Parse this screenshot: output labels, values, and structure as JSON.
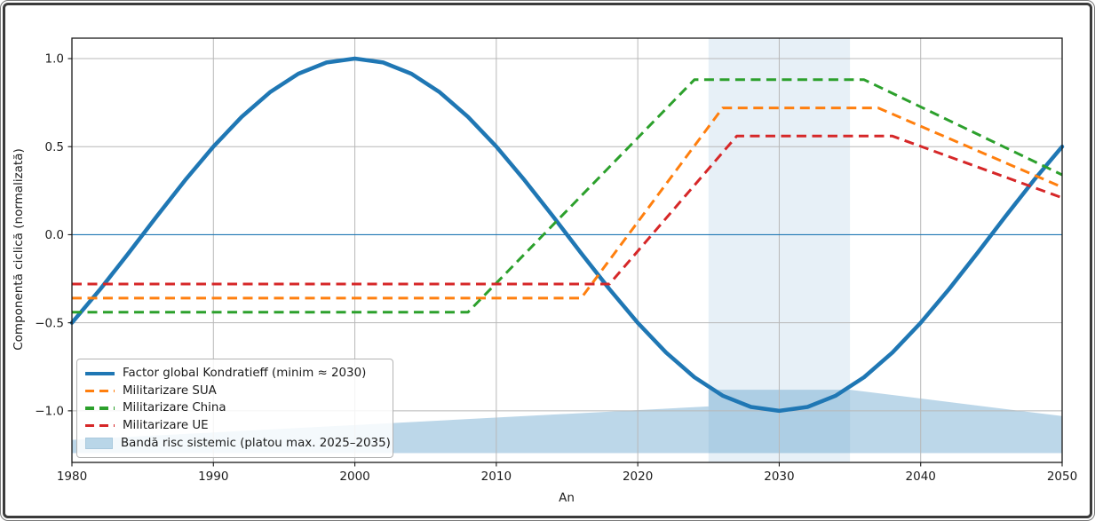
{
  "chart_data": {
    "type": "line",
    "title": "",
    "xlabel": "An",
    "ylabel": "Componentă ciclică (normalizată)",
    "xlim": [
      1980,
      2050
    ],
    "ylim": [
      -1.293,
      1.116
    ],
    "grid": true,
    "x_ticks": [
      1980,
      1990,
      2000,
      2010,
      2020,
      2030,
      2040,
      2050
    ],
    "x_tick_labels": [
      "1980",
      "1990",
      "2000",
      "2010",
      "2020",
      "2030",
      "2040",
      "2050"
    ],
    "y_ticks": [
      1.0,
      0.5,
      0.0,
      -0.5,
      -1.0
    ],
    "y_tick_labels": [
      "1.0",
      "0.5",
      "0.0",
      "−0.5",
      "−1.0"
    ],
    "zero_line": {
      "y": 0,
      "color": "#1f77b4"
    },
    "vspan": {
      "x_from": 2025,
      "x_to": 2035,
      "color": "#a5c8e1",
      "opacity": 0.27
    },
    "band": {
      "label": "Bandă risc sistemic (platou max. 2025–2035)",
      "color": "#4e96c6",
      "opacity": 0.38,
      "bottom": -1.24,
      "top_points": [
        [
          1980,
          -1.165
        ],
        [
          2025,
          -0.975
        ],
        [
          2025,
          -0.88
        ],
        [
          2035,
          -0.88
        ],
        [
          2050,
          -1.03
        ]
      ]
    },
    "series": [
      {
        "name": "Factor global Kondratieff (minim ≈ 2030)",
        "color": "#1f77b4",
        "style": "solid",
        "width": 4.5,
        "points": [
          [
            1980,
            -0.5
          ],
          [
            1982,
            -0.309
          ],
          [
            1984,
            -0.105
          ],
          [
            1986,
            0.105
          ],
          [
            1988,
            0.309
          ],
          [
            1990,
            0.5
          ],
          [
            1992,
            0.669
          ],
          [
            1994,
            0.809
          ],
          [
            1996,
            0.914
          ],
          [
            1998,
            0.978
          ],
          [
            2000,
            1.0
          ],
          [
            2002,
            0.978
          ],
          [
            2004,
            0.914
          ],
          [
            2006,
            0.809
          ],
          [
            2008,
            0.669
          ],
          [
            2010,
            0.5
          ],
          [
            2012,
            0.309
          ],
          [
            2014,
            0.105
          ],
          [
            2016,
            -0.105
          ],
          [
            2018,
            -0.309
          ],
          [
            2020,
            -0.5
          ],
          [
            2022,
            -0.669
          ],
          [
            2024,
            -0.809
          ],
          [
            2026,
            -0.914
          ],
          [
            2028,
            -0.978
          ],
          [
            2030,
            -1.0
          ],
          [
            2032,
            -0.978
          ],
          [
            2034,
            -0.914
          ],
          [
            2036,
            -0.809
          ],
          [
            2038,
            -0.669
          ],
          [
            2040,
            -0.5
          ],
          [
            2042,
            -0.309
          ],
          [
            2044,
            -0.105
          ],
          [
            2046,
            0.105
          ],
          [
            2048,
            0.309
          ],
          [
            2050,
            0.5
          ]
        ]
      },
      {
        "name": "Militarizare SUA",
        "color": "#ff7f0e",
        "style": "dashed",
        "width": 3,
        "points": [
          [
            1980,
            -0.36
          ],
          [
            2016,
            -0.36
          ],
          [
            2026,
            0.72
          ],
          [
            2037,
            0.72
          ],
          [
            2050,
            0.27
          ]
        ]
      },
      {
        "name": "Militarizare China",
        "color": "#2ca02c",
        "style": "dashed",
        "width": 3,
        "points": [
          [
            1980,
            -0.44
          ],
          [
            2008,
            -0.44
          ],
          [
            2024,
            0.88
          ],
          [
            2036,
            0.88
          ],
          [
            2050,
            0.34
          ]
        ]
      },
      {
        "name": "Militarizare UE",
        "color": "#d62728",
        "style": "dashed",
        "width": 3,
        "points": [
          [
            1980,
            -0.28
          ],
          [
            2018,
            -0.28
          ],
          [
            2027,
            0.56
          ],
          [
            2038,
            0.56
          ],
          [
            2050,
            0.21
          ]
        ]
      }
    ],
    "legend": {
      "position": "lower left",
      "entries": [
        {
          "label": "Factor global Kondratieff (minim ≈ 2030)",
          "swatch": "line-solid",
          "color": "#1f77b4"
        },
        {
          "label": "Militarizare SUA",
          "swatch": "line-dashed",
          "color": "#ff7f0e"
        },
        {
          "label": "Militarizare China",
          "swatch": "line-dashed",
          "color": "#2ca02c"
        },
        {
          "label": "Militarizare UE",
          "swatch": "line-dashed",
          "color": "#d62728"
        },
        {
          "label": "Bandă risc sistemic (platou max. 2025–2035)",
          "swatch": "patch",
          "color": "#b9d6e8"
        }
      ]
    }
  }
}
